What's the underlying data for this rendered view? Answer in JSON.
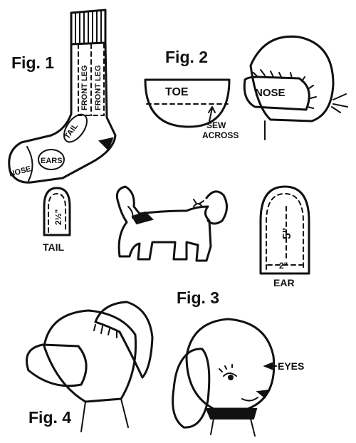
{
  "figures": {
    "fig1": "Fig. 1",
    "fig2": "Fig. 2",
    "fig3": "Fig. 3",
    "fig4": "Fig. 4"
  },
  "sock": {
    "front_leg_1": "FRONT LEG",
    "front_leg_2": "FRONT LEG",
    "tail": "TAIL",
    "ears": "EARS",
    "nose": "NOSE"
  },
  "toe": {
    "label": "TOE",
    "sew_1": "SEW",
    "sew_2": "ACROSS"
  },
  "head_fig2": {
    "nose": "NOSE"
  },
  "tail_pattern": {
    "size": "2½\"",
    "label": "TAIL"
  },
  "ear_pattern": {
    "length": "5\"",
    "width": "2\"",
    "label": "EAR"
  },
  "fig4": {
    "eyes": "EYES"
  }
}
